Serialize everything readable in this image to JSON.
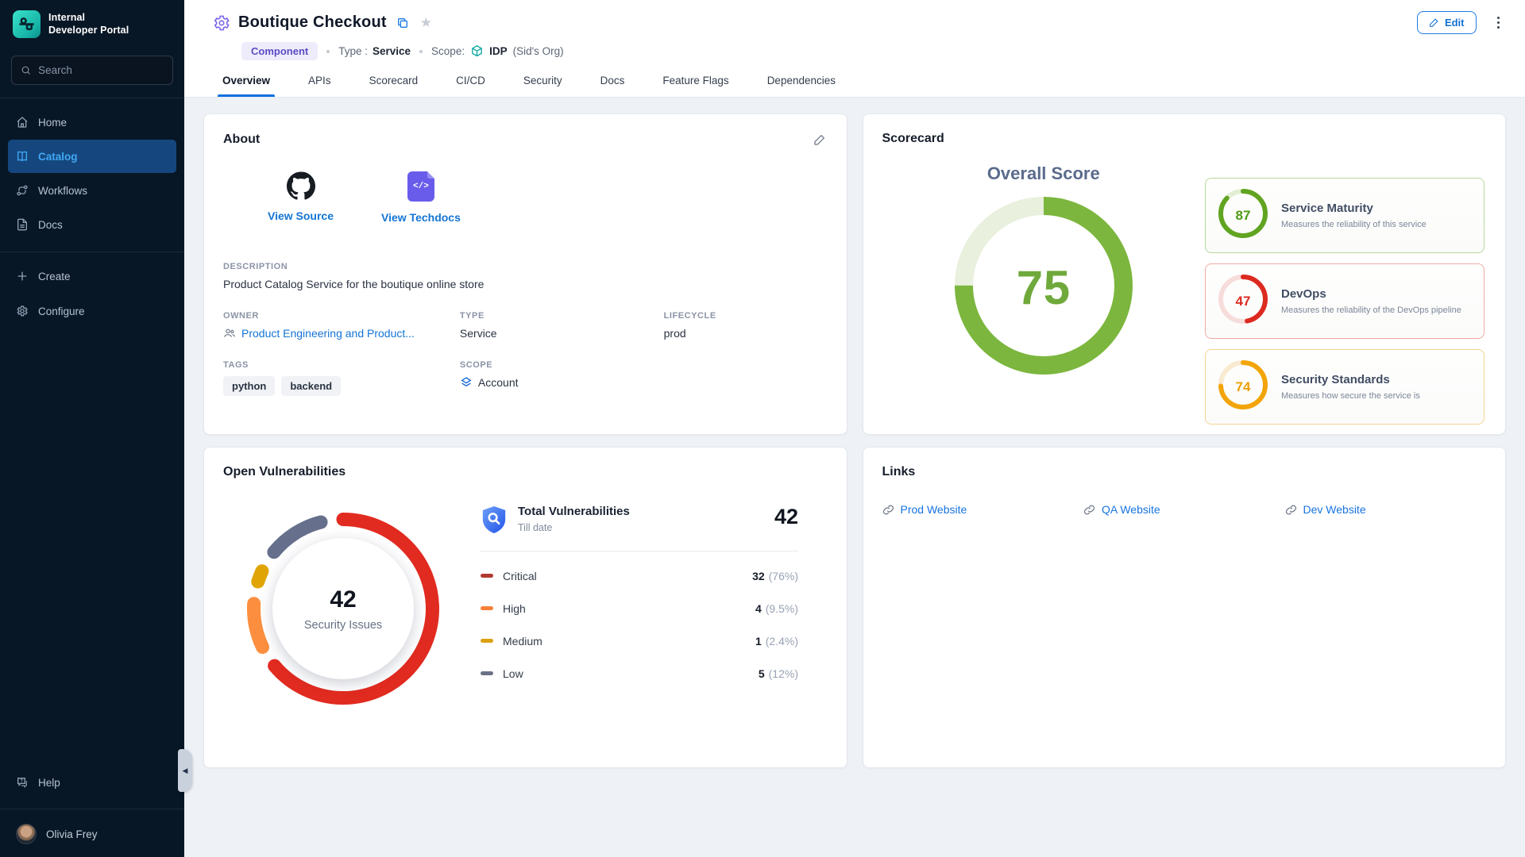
{
  "sidebar": {
    "brand_line1": "Internal",
    "brand_line2": "Developer Portal",
    "search_placeholder": "Search",
    "nav": [
      "Home",
      "Catalog",
      "Workflows",
      "Docs"
    ],
    "actions": [
      "Create",
      "Configure"
    ],
    "help_label": "Help",
    "user_name": "Olivia Frey"
  },
  "header": {
    "title": "Boutique Checkout",
    "badge": "Component",
    "type_label": "Type :",
    "type_value": "Service",
    "scope_label": "Scope:",
    "scope_value": "IDP",
    "scope_org": "(Sid's Org)",
    "edit_label": "Edit"
  },
  "tabs": [
    "Overview",
    "APIs",
    "Scorecard",
    "CI/CD",
    "Security",
    "Docs",
    "Feature Flags",
    "Dependencies"
  ],
  "about": {
    "title": "About",
    "view_source": "View Source",
    "view_techdocs": "View Techdocs",
    "techdocs_glyph": "</>",
    "description_label": "DESCRIPTION",
    "description": "Product Catalog Service for the boutique online store",
    "owner_label": "OWNER",
    "owner": "Product Engineering and Product...",
    "type_label": "TYPE",
    "type": "Service",
    "lifecycle_label": "LIFECYCLE",
    "lifecycle": "prod",
    "tags_label": "TAGS",
    "tags": [
      "python",
      "backend"
    ],
    "scope_label": "SCOPE",
    "scope": "Account"
  },
  "scorecard": {
    "title": "Scorecard",
    "overall_label": "Overall Score",
    "overall_score": 75,
    "overall_ring_color": "#7cb63e",
    "overall_track_color": "#e9f0de",
    "cards": [
      {
        "score": 87,
        "title": "Service Maturity",
        "desc": "Measures the reliability of this service",
        "ring": "#61a421",
        "track": "#e2efd2",
        "border": "#b5d89b",
        "value_color": "#4f9a13"
      },
      {
        "score": 47,
        "title": "DevOps",
        "desc": "Measures the reliability of the DevOps pipeline",
        "ring": "#dc2a20",
        "track": "#f6dcda",
        "border": "#efaca4",
        "value_color": "#dc2a20"
      },
      {
        "score": 74,
        "title": "Security Standards",
        "desc": "Measures how secure the service is",
        "ring": "#f2a50a",
        "track": "#f9ead0",
        "border": "#f5d492",
        "value_color": "#ec9f06"
      }
    ]
  },
  "vulnerabilities": {
    "title": "Open Vulnerabilities",
    "donut_total": "42",
    "donut_label": "Security Issues",
    "panel_title": "Total Vulnerabilities",
    "panel_subtitle": "Till date",
    "panel_total": "42",
    "rows": [
      {
        "label": "Critical",
        "value": "32",
        "pct": "(76%)",
        "share": 76,
        "donut_color": "#e12b20",
        "dash_color": "#b23a31"
      },
      {
        "label": "High",
        "value": "4",
        "pct": "(9.5%)",
        "share": 9.5,
        "donut_color": "#fc8f3f",
        "dash_color": "#f58138"
      },
      {
        "label": "Medium",
        "value": "1",
        "pct": "(2.4%)",
        "share": 2.4,
        "donut_color": "#e0a504",
        "dash_color": "#dba112"
      },
      {
        "label": "Low",
        "value": "5",
        "pct": "(12%)",
        "share": 12,
        "donut_color": "#66708c",
        "dash_color": "#6a7286"
      }
    ]
  },
  "links": {
    "title": "Links",
    "items": [
      "Prod Website",
      "QA Website",
      "Dev Website"
    ]
  },
  "colors": {
    "accent_blue": "#1270d6",
    "tab_underline": "#0b6fe0",
    "sidebar_active_bg": "#15477e",
    "sidebar_active_text": "#41a7f5"
  }
}
